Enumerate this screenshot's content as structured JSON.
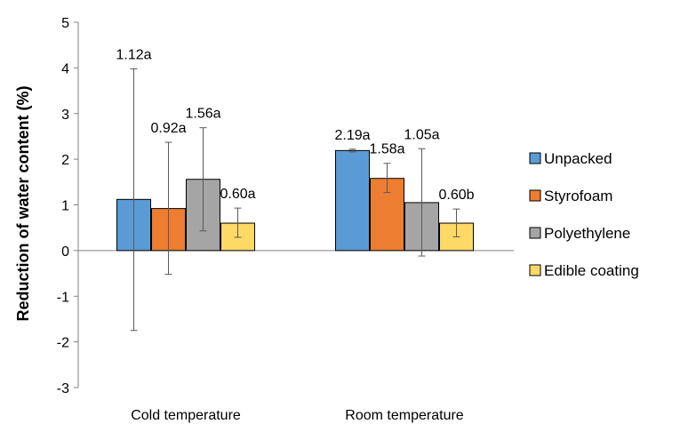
{
  "chart_data": {
    "type": "bar",
    "title": "",
    "xlabel": "",
    "ylabel": "Reduction of water content (%)",
    "ylim": [
      -3,
      5
    ],
    "yticks": [
      5,
      4,
      3,
      2,
      1,
      0,
      -1,
      -2,
      -3
    ],
    "categories": [
      "Cold temperature",
      "Room temperature"
    ],
    "grid": false,
    "legend_position": "right",
    "series": [
      {
        "name": "Unpacked",
        "color": "#5B9BD5",
        "values": [
          1.12,
          2.19
        ],
        "error_low": [
          -1.75,
          2.16
        ],
        "error_high": [
          3.98,
          2.22
        ],
        "labels": [
          "1.12a",
          "2.19a"
        ]
      },
      {
        "name": "Styrofoam",
        "color": "#ED7D31",
        "values": [
          0.92,
          1.58
        ],
        "error_low": [
          -0.52,
          1.27
        ],
        "error_high": [
          2.37,
          1.91
        ],
        "labels": [
          "0.92a",
          "1.58a"
        ]
      },
      {
        "name": "Polyethylene",
        "color": "#A5A5A5",
        "values": [
          1.56,
          1.05
        ],
        "error_low": [
          0.43,
          -0.12
        ],
        "error_high": [
          2.69,
          2.23
        ],
        "labels": [
          "1.56a",
          "1.05a"
        ]
      },
      {
        "name": "Edible coating",
        "color": "#FFD966",
        "values": [
          0.6,
          0.6
        ],
        "error_low": [
          0.29,
          0.3
        ],
        "error_high": [
          0.93,
          0.91
        ],
        "labels": [
          "0.60a",
          "0.60b"
        ]
      }
    ]
  }
}
